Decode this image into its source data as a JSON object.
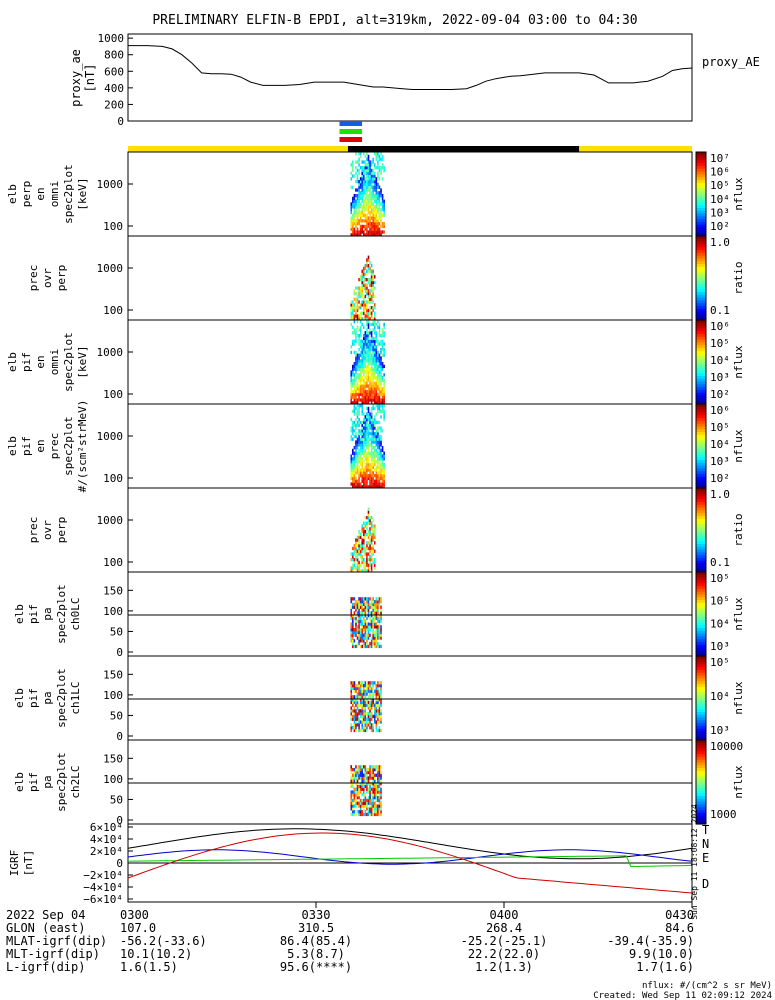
{
  "title": "PRELIMINARY ELFIN-B EPDI, alt=319km, 2022-09-04 03:00 to 04:30",
  "colors": {
    "orange": "#e8a000",
    "yellow": "#ffe000",
    "black": "#000000",
    "blue": "#1060e0",
    "green": "#20e000",
    "red": "#e00000",
    "bfield_blue": "#0000cc",
    "bfield_green": "#00cc00",
    "bfield_red": "#cc0000"
  },
  "ae_panel": {
    "ylabel": "proxy_ae\n[nT]",
    "legend": "proxy_AE",
    "yticks": [
      "0",
      "200",
      "400",
      "600",
      "800",
      "1000"
    ],
    "ylim": [
      0,
      1050
    ],
    "chart_data": {
      "type": "line",
      "x_minutes": [
        0,
        8,
        14,
        18,
        22,
        26,
        30,
        34,
        38,
        42,
        46,
        50,
        55,
        60,
        64,
        70,
        76,
        80,
        84,
        88,
        92,
        96,
        100,
        104,
        108,
        112,
        116,
        120,
        126,
        132,
        138,
        142,
        146,
        150,
        152,
        156,
        160,
        164,
        170,
        176,
        180,
        184,
        190,
        196,
        200,
        206,
        212,
        218,
        222,
        226,
        230
      ],
      "values": [
        910,
        910,
        900,
        870,
        800,
        700,
        580,
        570,
        570,
        565,
        530,
        470,
        430,
        430,
        430,
        440,
        470,
        470,
        470,
        470,
        450,
        430,
        410,
        410,
        400,
        390,
        380,
        380,
        380,
        380,
        390,
        430,
        480,
        510,
        520,
        540,
        545,
        560,
        580,
        580,
        580,
        580,
        555,
        460,
        460,
        460,
        480,
        540,
        610,
        630,
        640
      ]
    }
  },
  "top_bars": [
    {
      "color": "blue",
      "start": 0.375,
      "end": 0.415
    },
    {
      "color": "green",
      "start": 0.375,
      "end": 0.415
    },
    {
      "color": "red",
      "start": 0.375,
      "end": 0.415
    }
  ],
  "orbit_bar": {
    "yellow_end": 0.39,
    "black_end": 0.8
  },
  "panels": [
    {
      "name": "elb-perp-omni",
      "label_lines": [
        "elb",
        "perp",
        "en",
        "omni",
        "spec2plot",
        "[keV]"
      ],
      "yticks": [
        "100",
        "1000"
      ],
      "cb_type": "log",
      "cb_label": "nflux",
      "cb_ticks": [
        "10⁷",
        "10⁶",
        "10⁵",
        "10⁴",
        "10³",
        "10²"
      ],
      "kind": "spec"
    },
    {
      "name": "prec-ovr-perp-1",
      "label_lines": [
        "prec",
        "ovr",
        "perp"
      ],
      "yticks": [
        "100",
        "1000"
      ],
      "cb_type": "ratio",
      "cb_label": "ratio",
      "cb_ticks": [
        "1.0",
        "0.1"
      ],
      "kind": "ratio"
    },
    {
      "name": "elb-pif-omni",
      "label_lines": [
        "elb",
        "pif",
        "en",
        "omni",
        "spec2plot",
        "[keV]"
      ],
      "yticks": [
        "100",
        "1000"
      ],
      "cb_type": "log",
      "cb_label": "nflux",
      "cb_ticks": [
        "10⁶",
        "10⁵",
        "10⁴",
        "10³",
        "10²"
      ],
      "kind": "spec"
    },
    {
      "name": "elb-pif-prec",
      "label_lines": [
        "elb",
        "pif",
        "en",
        "prec",
        "spec2plot",
        "#/(scm²strMeV)"
      ],
      "yticks": [
        "100",
        "1000"
      ],
      "cb_type": "log",
      "cb_label": "nflux",
      "cb_ticks": [
        "10⁶",
        "10⁵",
        "10⁴",
        "10³",
        "10²"
      ],
      "kind": "spec"
    },
    {
      "name": "prec-ovr-perp-2",
      "label_lines": [
        "prec",
        "ovr",
        "perp"
      ],
      "yticks": [
        "100",
        "1000"
      ],
      "cb_type": "ratio",
      "cb_label": "ratio",
      "cb_ticks": [
        "1.0",
        "0.1"
      ],
      "kind": "ratio"
    },
    {
      "name": "elb-pif-pa-ch0",
      "label_lines": [
        "elb",
        "pif",
        "pa",
        "spec2plot",
        "ch0LC"
      ],
      "yticks": [
        "0",
        "50",
        "100",
        "150"
      ],
      "cb_type": "log",
      "cb_label": "nflux",
      "cb_ticks": [
        "10⁵",
        "10⁵",
        "10⁴",
        "10³"
      ],
      "kind": "pa"
    },
    {
      "name": "elb-pif-pa-ch1",
      "label_lines": [
        "elb",
        "pif",
        "pa",
        "spec2plot",
        "ch1LC"
      ],
      "yticks": [
        "0",
        "50",
        "100",
        "150"
      ],
      "cb_type": "log",
      "cb_label": "nflux",
      "cb_ticks": [
        "10⁵",
        "10⁴",
        "10³"
      ],
      "kind": "pa"
    },
    {
      "name": "elb-pif-pa-ch2",
      "label_lines": [
        "elb",
        "pif",
        "pa",
        "spec2plot",
        "ch2LC"
      ],
      "yticks": [
        "0",
        "50",
        "100",
        "150"
      ],
      "cb_type": "log",
      "cb_label": "nflux",
      "cb_ticks": [
        "10000",
        "1000"
      ],
      "kind": "pa"
    }
  ],
  "bfield_panel": {
    "ylabel": "IGRF\n[nT]",
    "yticks": [
      "6×10⁴",
      "4×10⁴",
      "2×10⁴",
      "0",
      "−2×10⁴",
      "−4×10⁴",
      "−6×10⁴"
    ],
    "legend": [
      {
        "text": "T",
        "color": "black"
      },
      {
        "text": "N",
        "color": "bfield_blue"
      },
      {
        "text": "E",
        "color": "bfield_green"
      },
      {
        "text": "D",
        "color": "bfield_red"
      }
    ],
    "side_text": "Sun Sep 11 18:08:12 2024"
  },
  "footer": {
    "rows": [
      {
        "label": "2022 Sep 04",
        "values": [
          "0300",
          "0330",
          "0400",
          "0430"
        ]
      },
      {
        "label": "GLON (east)",
        "values": [
          "107.0",
          "310.5",
          "268.4",
          "84.6"
        ]
      },
      {
        "label": "MLAT-igrf(dip)",
        "values": [
          "-56.2(-33.6)",
          "86.4(85.4)",
          "-25.2(-25.1)",
          "-39.4(-35.9)"
        ]
      },
      {
        "label": "MLT-igrf(dip)",
        "values": [
          "10.1(10.2)",
          "5.3(8.7)",
          "22.2(22.0)",
          "9.9(10.0)"
        ]
      },
      {
        "label": "L-igrf(dip)",
        "values": [
          "1.6(1.5)",
          "95.6(****)",
          "1.2(1.3)",
          "1.7(1.6)"
        ]
      }
    ],
    "note1": "nflux: #/(cm^2 s sr MeV)",
    "note2": "Created: Wed Sep 11 02:09:12 2024"
  }
}
